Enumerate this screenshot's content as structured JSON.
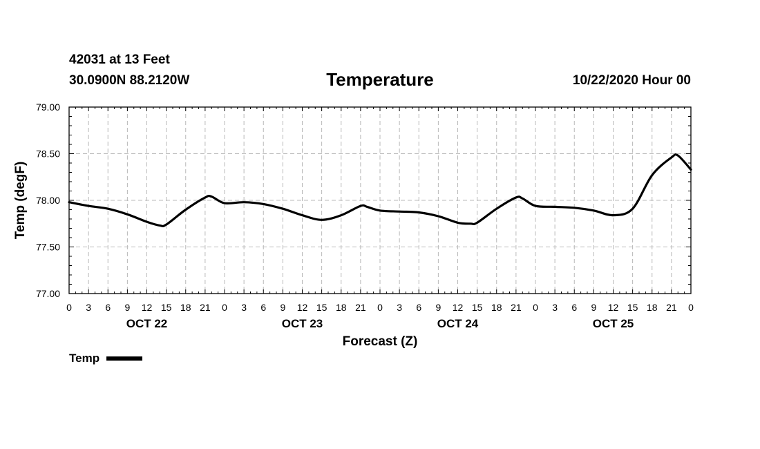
{
  "header": {
    "station": "42031 at 13 Feet",
    "coords": "30.0900N 88.2120W",
    "title": "Temperature",
    "timestamp": "10/22/2020 Hour 00"
  },
  "chart_data": {
    "type": "line",
    "title": "Temperature",
    "xlabel": "Forecast (Z)",
    "ylabel": "Temp (degF)",
    "ylim": [
      77.0,
      79.0
    ],
    "yticks": [
      "77.00",
      "77.50",
      "78.00",
      "78.50",
      "79.00"
    ],
    "xlim_hours": [
      0,
      96
    ],
    "xtick_labels": [
      "0",
      "3",
      "6",
      "9",
      "12",
      "15",
      "18",
      "21",
      "0",
      "3",
      "6",
      "9",
      "12",
      "15",
      "18",
      "21",
      "0",
      "3",
      "6",
      "9",
      "12",
      "15",
      "18",
      "21",
      "0",
      "3",
      "6",
      "9",
      "12",
      "15",
      "18",
      "21",
      "0"
    ],
    "day_labels": [
      "OCT 22",
      "OCT 23",
      "OCT 24",
      "OCT 25"
    ],
    "grid": true,
    "legend_position": "bottom-left",
    "series": [
      {
        "name": "Temp",
        "color": "#000000",
        "x_hours": [
          0,
          3,
          6,
          9,
          12,
          14,
          15,
          18,
          21,
          22,
          24,
          27,
          30,
          33,
          36,
          39,
          42,
          45,
          46,
          48,
          51,
          54,
          57,
          60,
          62,
          63,
          66,
          69,
          70,
          72,
          75,
          78,
          81,
          84,
          87,
          90,
          93,
          94,
          96
        ],
        "values": [
          77.98,
          77.94,
          77.91,
          77.85,
          77.77,
          77.73,
          77.74,
          77.9,
          78.03,
          78.04,
          77.97,
          77.98,
          77.96,
          77.91,
          77.84,
          77.79,
          77.84,
          77.94,
          77.93,
          77.89,
          77.88,
          77.87,
          77.83,
          77.76,
          77.75,
          77.76,
          77.91,
          78.03,
          78.02,
          77.94,
          77.93,
          77.92,
          77.89,
          77.84,
          77.91,
          78.27,
          78.46,
          78.48,
          78.33
        ]
      }
    ]
  },
  "legend": {
    "label": "Temp"
  }
}
